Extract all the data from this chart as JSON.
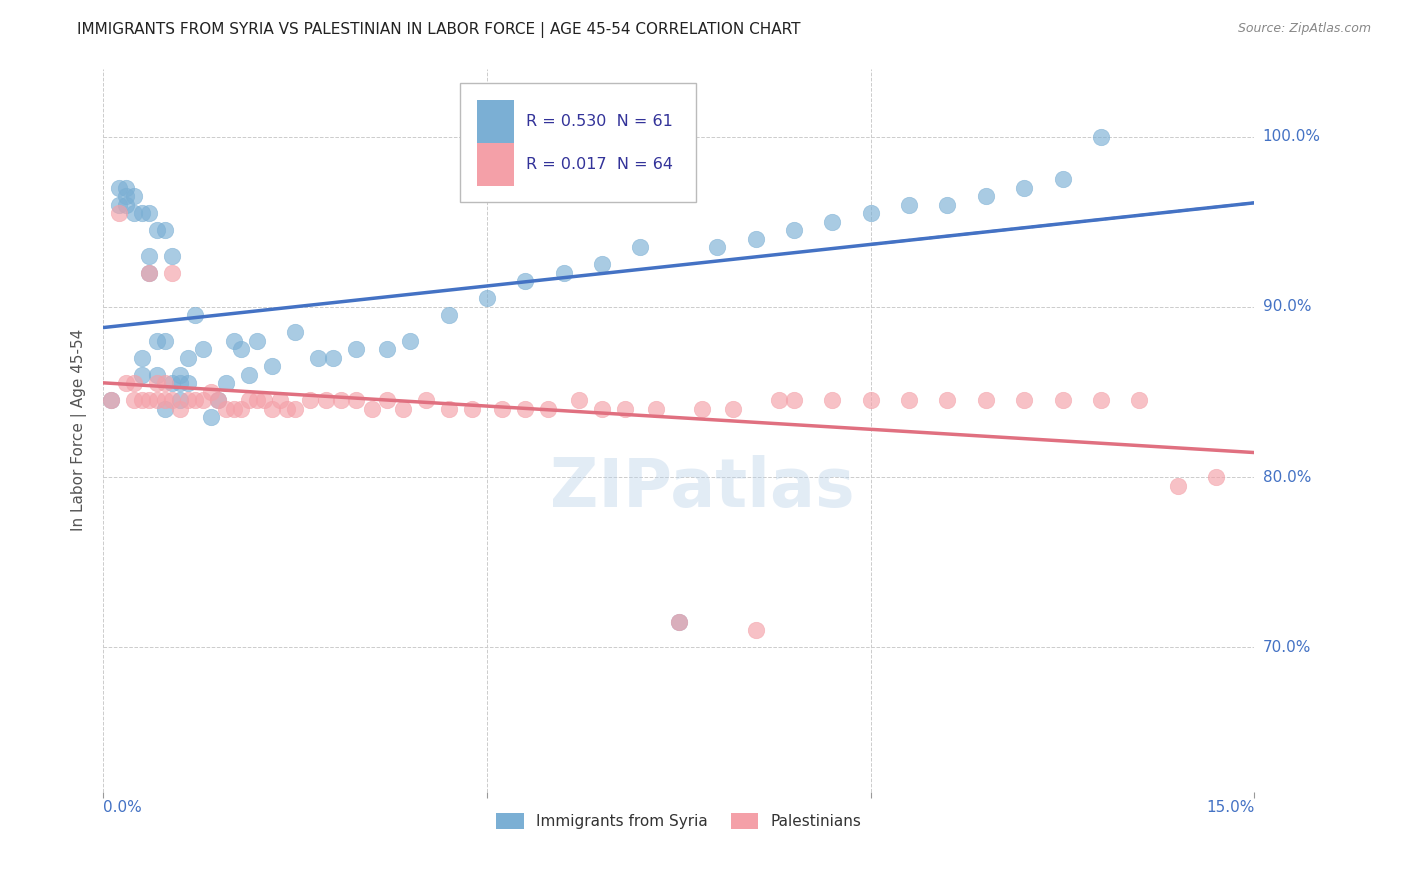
{
  "title": "IMMIGRANTS FROM SYRIA VS PALESTINIAN IN LABOR FORCE | AGE 45-54 CORRELATION CHART",
  "source": "Source: ZipAtlas.com",
  "yaxis_label": "In Labor Force | Age 45-54",
  "legend_syria_R": "0.530",
  "legend_syria_N": "61",
  "legend_pal_R": "0.017",
  "legend_pal_N": "64",
  "legend_label_syria": "Immigrants from Syria",
  "legend_label_pal": "Palestinians",
  "xlim": [
    0.0,
    0.15
  ],
  "ylim": [
    0.615,
    1.04
  ],
  "syria_color": "#7BAFD4",
  "pal_color": "#F4A0A8",
  "syria_line_color": "#4472C4",
  "pal_line_color": "#E07080",
  "watermark": "ZIPatlas",
  "syria_x": [
    0.001,
    0.002,
    0.002,
    0.003,
    0.003,
    0.003,
    0.004,
    0.004,
    0.005,
    0.005,
    0.005,
    0.006,
    0.006,
    0.006,
    0.007,
    0.007,
    0.007,
    0.008,
    0.008,
    0.008,
    0.009,
    0.009,
    0.01,
    0.01,
    0.01,
    0.011,
    0.011,
    0.012,
    0.013,
    0.014,
    0.015,
    0.016,
    0.017,
    0.018,
    0.019,
    0.02,
    0.022,
    0.025,
    0.028,
    0.03,
    0.033,
    0.037,
    0.04,
    0.045,
    0.05,
    0.055,
    0.06,
    0.065,
    0.07,
    0.075,
    0.08,
    0.085,
    0.09,
    0.095,
    0.1,
    0.105,
    0.11,
    0.115,
    0.12,
    0.125,
    0.13
  ],
  "syria_y": [
    0.845,
    0.96,
    0.97,
    0.97,
    0.965,
    0.96,
    0.955,
    0.965,
    0.86,
    0.87,
    0.955,
    0.93,
    0.92,
    0.955,
    0.88,
    0.86,
    0.945,
    0.84,
    0.88,
    0.945,
    0.855,
    0.93,
    0.845,
    0.855,
    0.86,
    0.855,
    0.87,
    0.895,
    0.875,
    0.835,
    0.845,
    0.855,
    0.88,
    0.875,
    0.86,
    0.88,
    0.865,
    0.885,
    0.87,
    0.87,
    0.875,
    0.875,
    0.88,
    0.895,
    0.905,
    0.915,
    0.92,
    0.925,
    0.935,
    0.715,
    0.935,
    0.94,
    0.945,
    0.95,
    0.955,
    0.96,
    0.96,
    0.965,
    0.97,
    0.975,
    1.0
  ],
  "pal_x": [
    0.001,
    0.002,
    0.003,
    0.004,
    0.004,
    0.005,
    0.006,
    0.006,
    0.007,
    0.007,
    0.008,
    0.008,
    0.009,
    0.009,
    0.01,
    0.011,
    0.012,
    0.013,
    0.014,
    0.015,
    0.016,
    0.017,
    0.018,
    0.019,
    0.02,
    0.021,
    0.022,
    0.023,
    0.024,
    0.025,
    0.027,
    0.029,
    0.031,
    0.033,
    0.035,
    0.037,
    0.039,
    0.042,
    0.045,
    0.048,
    0.052,
    0.055,
    0.058,
    0.062,
    0.065,
    0.068,
    0.072,
    0.075,
    0.078,
    0.082,
    0.085,
    0.088,
    0.09,
    0.095,
    0.1,
    0.105,
    0.11,
    0.115,
    0.12,
    0.125,
    0.13,
    0.135,
    0.14,
    0.145
  ],
  "pal_y": [
    0.845,
    0.955,
    0.855,
    0.845,
    0.855,
    0.845,
    0.845,
    0.92,
    0.845,
    0.855,
    0.845,
    0.855,
    0.845,
    0.92,
    0.84,
    0.845,
    0.845,
    0.845,
    0.85,
    0.845,
    0.84,
    0.84,
    0.84,
    0.845,
    0.845,
    0.845,
    0.84,
    0.845,
    0.84,
    0.84,
    0.845,
    0.845,
    0.845,
    0.845,
    0.84,
    0.845,
    0.84,
    0.845,
    0.84,
    0.84,
    0.84,
    0.84,
    0.84,
    0.845,
    0.84,
    0.84,
    0.84,
    0.715,
    0.84,
    0.84,
    0.71,
    0.845,
    0.845,
    0.845,
    0.845,
    0.845,
    0.845,
    0.845,
    0.845,
    0.845,
    0.845,
    0.845,
    0.795,
    0.8
  ]
}
